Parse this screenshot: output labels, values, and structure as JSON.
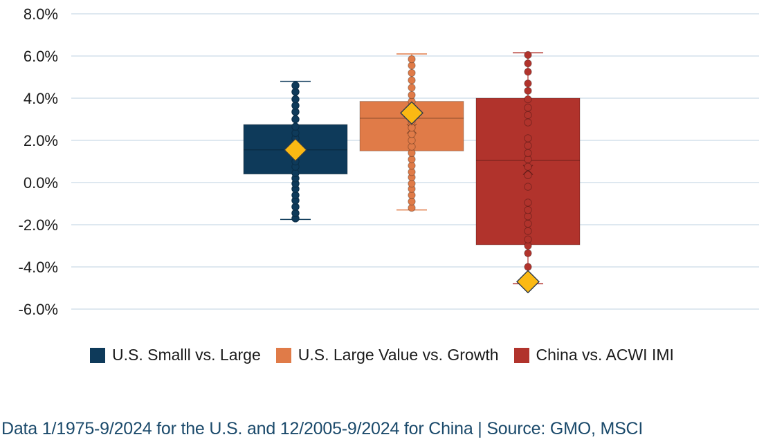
{
  "chart_data": {
    "type": "box",
    "ylim": [
      -6,
      8
    ],
    "yticks": [
      -6,
      -4,
      -2,
      0,
      2,
      4,
      6,
      8
    ],
    "ytick_labels": [
      "-6.0%",
      "-4.0%",
      "-2.0%",
      "0.0%",
      "2.0%",
      "4.0%",
      "6.0%",
      "8.0%"
    ],
    "grid": true,
    "legend_position": "bottom",
    "series": [
      {
        "name": "U.S. Smalll vs. Large",
        "color": "#0e3a5a",
        "whisker_low": -1.75,
        "q1": 0.4,
        "median": 1.55,
        "q3": 2.75,
        "whisker_high": 4.8,
        "mean": 1.6,
        "highlight": 1.55,
        "points": [
          -1.7,
          -1.45,
          -1.15,
          -0.85,
          -0.6,
          -0.3,
          -0.05,
          0.2,
          0.45,
          0.75,
          1.0,
          1.3,
          1.55,
          1.8,
          2.1,
          2.35,
          2.65,
          3.0,
          3.35,
          3.65,
          3.95,
          4.3,
          4.6
        ]
      },
      {
        "name": "U.S. Large Value vs. Growth",
        "color": "#e07b48",
        "whisker_low": -1.3,
        "q1": 1.5,
        "median": 3.05,
        "q3": 3.85,
        "whisker_high": 6.1,
        "mean": 2.55,
        "highlight": 3.3,
        "points": [
          -1.2,
          -0.9,
          -0.6,
          -0.3,
          -0.05,
          0.25,
          0.5,
          0.8,
          1.1,
          1.4,
          1.7,
          2.0,
          2.3,
          2.6,
          2.9,
          3.2,
          3.5,
          3.85,
          4.15,
          4.5,
          4.85,
          5.2,
          5.55,
          5.85
        ]
      },
      {
        "name": "China vs. ACWI IMI",
        "color": "#b1332c",
        "whisker_low": -4.8,
        "q1": -2.95,
        "median": 1.05,
        "q3": 4.0,
        "whisker_high": 6.15,
        "mean": 0.6,
        "highlight": -4.7,
        "points": [
          -4.0,
          -3.35,
          -3.0,
          -2.7,
          -2.3,
          -1.95,
          -1.6,
          -1.3,
          -0.95,
          -0.2,
          0.35,
          0.75,
          1.1,
          1.4,
          1.75,
          2.1,
          2.85,
          3.2,
          3.55,
          3.95,
          4.35,
          4.7,
          5.25,
          5.65,
          6.05
        ]
      }
    ]
  },
  "footnote": "Data 1/1975-9/2024 for the U.S. and 12/2005-9/2024 for China | Source: GMO, MSCI",
  "highlight_color": "#fbb913"
}
